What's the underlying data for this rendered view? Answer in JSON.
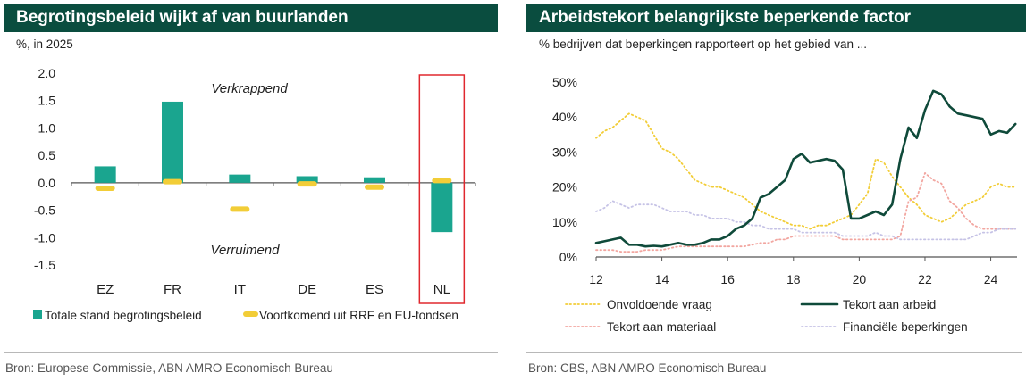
{
  "left": {
    "title": "Begrotingsbeleid wijkt af van buurlanden",
    "subtitle": "%, in 2025",
    "source": "Bron: Europese Commissie, ABN AMRO Economisch Bureau"
  },
  "right": {
    "title": "Arbeidstekort belangrijkste beperkende factor",
    "subtitle": "% bedrijven dat beperkingen rapporteert op het gebied van ...",
    "source": "Bron: CBS, ABN AMRO Economisch Bureau"
  },
  "chart_data": [
    {
      "type": "bar",
      "categories": [
        "EZ",
        "FR",
        "IT",
        "DE",
        "ES",
        "NL"
      ],
      "series": [
        {
          "name": "Totale stand begrotingsbeleid",
          "color": "#1aa58f",
          "values": [
            0.3,
            1.48,
            0.15,
            0.12,
            0.1,
            -0.9
          ]
        },
        {
          "name": "Voortkomend uit RRF en EU-fondsen",
          "color": "#f2cd37",
          "values": [
            -0.1,
            0.02,
            -0.48,
            -0.02,
            -0.08,
            0.04
          ]
        }
      ],
      "ylim": [
        -1.5,
        2.0
      ],
      "yticks": [
        "2.0",
        "1.5",
        "1.0",
        "0.5",
        "0.0",
        "-0.5",
        "-1.0",
        "-1.5"
      ],
      "ytick_values": [
        2.0,
        1.5,
        1.0,
        0.5,
        0.0,
        -0.5,
        -1.0,
        -1.5
      ],
      "annotations": {
        "upper": "Verkrappend",
        "lower": "Verruimend"
      },
      "highlight_category": "NL",
      "highlight_color": "#e0282e"
    },
    {
      "type": "line",
      "xlim": [
        2012,
        2024.8
      ],
      "ylim": [
        0,
        50
      ],
      "xticks": [
        "12",
        "14",
        "16",
        "18",
        "20",
        "22",
        "24"
      ],
      "xtick_values": [
        2012,
        2014,
        2016,
        2018,
        2020,
        2022,
        2024
      ],
      "yticks": [
        "50%",
        "40%",
        "30%",
        "20%",
        "10%",
        "0%"
      ],
      "ytick_values": [
        50,
        40,
        30,
        20,
        10,
        0
      ],
      "series": [
        {
          "name": "Onvoldoende vraag",
          "color": "#f2cd37",
          "style": "dotted",
          "x": [
            2012.0,
            2012.25,
            2012.5,
            2012.75,
            2013.0,
            2013.25,
            2013.5,
            2013.75,
            2014.0,
            2014.25,
            2014.5,
            2014.75,
            2015.0,
            2015.25,
            2015.5,
            2015.75,
            2016.0,
            2016.25,
            2016.5,
            2016.75,
            2017.0,
            2017.25,
            2017.5,
            2017.75,
            2018.0,
            2018.25,
            2018.5,
            2018.75,
            2019.0,
            2019.25,
            2019.5,
            2019.75,
            2020.0,
            2020.25,
            2020.5,
            2020.75,
            2021.0,
            2021.25,
            2021.5,
            2021.75,
            2022.0,
            2022.25,
            2022.5,
            2022.75,
            2023.0,
            2023.25,
            2023.5,
            2023.75,
            2024.0,
            2024.25,
            2024.5,
            2024.75
          ],
          "y": [
            34,
            36,
            37,
            39,
            41,
            40,
            39,
            35,
            31,
            30,
            28,
            25,
            22,
            21,
            20,
            20,
            19,
            18,
            17,
            15,
            13,
            12,
            11,
            10,
            9,
            9,
            8,
            9,
            9,
            10,
            11,
            12,
            15,
            18,
            28,
            27,
            23,
            20,
            17,
            15,
            12,
            11,
            10,
            11,
            13,
            15,
            16,
            17,
            20,
            21,
            20,
            20
          ]
        },
        {
          "name": "Tekort aan arbeid",
          "color": "#0f4a3a",
          "style": "solid",
          "x": [
            2012.0,
            2012.25,
            2012.5,
            2012.75,
            2013.0,
            2013.25,
            2013.5,
            2013.75,
            2014.0,
            2014.25,
            2014.5,
            2014.75,
            2015.0,
            2015.25,
            2015.5,
            2015.75,
            2016.0,
            2016.25,
            2016.5,
            2016.75,
            2017.0,
            2017.25,
            2017.5,
            2017.75,
            2018.0,
            2018.25,
            2018.5,
            2018.75,
            2019.0,
            2019.25,
            2019.5,
            2019.75,
            2020.0,
            2020.25,
            2020.5,
            2020.75,
            2021.0,
            2021.25,
            2021.5,
            2021.75,
            2022.0,
            2022.25,
            2022.5,
            2022.75,
            2023.0,
            2023.25,
            2023.5,
            2023.75,
            2024.0,
            2024.25,
            2024.5,
            2024.75
          ],
          "y": [
            4,
            4.5,
            5,
            5.5,
            3.5,
            3.5,
            3,
            3.2,
            3,
            3.5,
            4,
            3.5,
            3.5,
            4,
            5,
            5,
            6,
            8,
            9,
            11,
            17,
            18,
            20,
            22,
            28,
            29.5,
            27,
            27.5,
            28,
            27.5,
            25,
            11,
            11,
            12,
            13,
            12,
            15,
            28,
            37,
            34,
            42,
            47.5,
            46.5,
            43,
            41,
            40.5,
            40,
            39.5,
            35,
            36,
            35.5,
            38
          ]
        },
        {
          "name": "Tekort aan materiaal",
          "color": "#f2a6a0",
          "style": "dotted",
          "x": [
            2012.0,
            2012.25,
            2012.5,
            2012.75,
            2013.0,
            2013.25,
            2013.5,
            2013.75,
            2014.0,
            2014.25,
            2014.5,
            2014.75,
            2015.0,
            2015.25,
            2015.5,
            2015.75,
            2016.0,
            2016.25,
            2016.5,
            2016.75,
            2017.0,
            2017.25,
            2017.5,
            2017.75,
            2018.0,
            2018.25,
            2018.5,
            2018.75,
            2019.0,
            2019.25,
            2019.5,
            2019.75,
            2020.0,
            2020.25,
            2020.5,
            2020.75,
            2021.0,
            2021.25,
            2021.5,
            2021.75,
            2022.0,
            2022.25,
            2022.5,
            2022.75,
            2023.0,
            2023.25,
            2023.5,
            2023.75,
            2024.0,
            2024.25,
            2024.5,
            2024.75
          ],
          "y": [
            2,
            2,
            2,
            1.5,
            1.5,
            1.5,
            2,
            2,
            2,
            2.5,
            3,
            3,
            3,
            3,
            3,
            3,
            3,
            3,
            3,
            3.5,
            4,
            4,
            5,
            5,
            6,
            6,
            6,
            6,
            6,
            6,
            5,
            5,
            5,
            5,
            5,
            5,
            5,
            6,
            16,
            17,
            24,
            22,
            21,
            16,
            14,
            11,
            9,
            8,
            8,
            8,
            8,
            8
          ]
        },
        {
          "name": "Financiële beperkingen",
          "color": "#c6c3e6",
          "style": "dotted",
          "x": [
            2012.0,
            2012.25,
            2012.5,
            2012.75,
            2013.0,
            2013.25,
            2013.5,
            2013.75,
            2014.0,
            2014.25,
            2014.5,
            2014.75,
            2015.0,
            2015.25,
            2015.5,
            2015.75,
            2016.0,
            2016.25,
            2016.5,
            2016.75,
            2017.0,
            2017.25,
            2017.5,
            2017.75,
            2018.0,
            2018.25,
            2018.5,
            2018.75,
            2019.0,
            2019.25,
            2019.5,
            2019.75,
            2020.0,
            2020.25,
            2020.5,
            2020.75,
            2021.0,
            2021.25,
            2021.5,
            2021.75,
            2022.0,
            2022.25,
            2022.5,
            2022.75,
            2023.0,
            2023.25,
            2023.5,
            2023.75,
            2024.0,
            2024.25,
            2024.5,
            2024.75
          ],
          "y": [
            13,
            14,
            16,
            15,
            14,
            15,
            15,
            15,
            14,
            13,
            13,
            13,
            12,
            12,
            11,
            11,
            11,
            10,
            10,
            9,
            9,
            8,
            8,
            8,
            8,
            7,
            7,
            7,
            7,
            7,
            6,
            6,
            6,
            6,
            7,
            6,
            6,
            5,
            5,
            5,
            5,
            5,
            5,
            5,
            5,
            5,
            6,
            7,
            7,
            8,
            8,
            8
          ]
        }
      ],
      "legend_placement": "bottom"
    }
  ]
}
